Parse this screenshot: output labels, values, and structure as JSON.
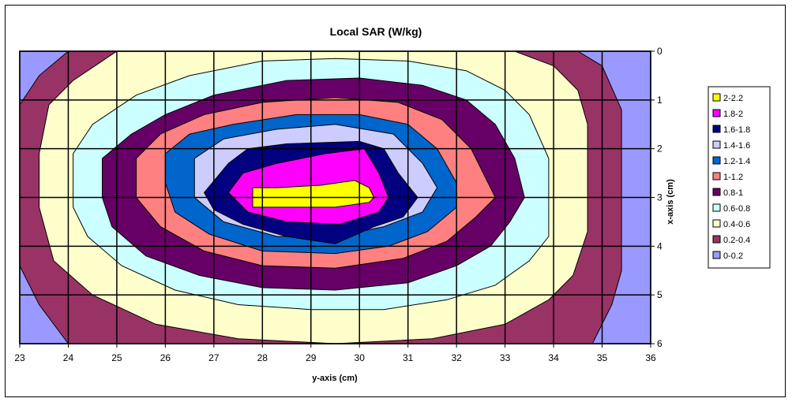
{
  "chart_data": {
    "type": "contour",
    "title": "Local SAR (W/kg)",
    "xlabel": "y-axis (cm)",
    "ylabel": "x-axis (cm)",
    "x_ticks": [
      "23",
      "24",
      "25",
      "26",
      "27",
      "28",
      "29",
      "30",
      "31",
      "32",
      "33",
      "34",
      "35",
      "36"
    ],
    "y_ticks": [
      "0",
      "1",
      "2",
      "3",
      "4",
      "5",
      "6"
    ],
    "xlim": [
      23,
      36
    ],
    "ylim": [
      0,
      6
    ],
    "grid": true,
    "legend_position": "right",
    "legend": [
      {
        "label": "2-2.2",
        "color": "#ffff00"
      },
      {
        "label": "1.8-2",
        "color": "#ff00ff"
      },
      {
        "label": "1.6-1.8",
        "color": "#000080"
      },
      {
        "label": "1.4-1.6",
        "color": "#ccccff"
      },
      {
        "label": "1.2-1.4",
        "color": "#0066cc"
      },
      {
        "label": "1-1.2",
        "color": "#ff8080"
      },
      {
        "label": "0.8-1",
        "color": "#660066"
      },
      {
        "label": "0.6-0.8",
        "color": "#ccffff"
      },
      {
        "label": "0.4-0.6",
        "color": "#ffffcc"
      },
      {
        "label": "0.2-0.4",
        "color": "#993366"
      },
      {
        "label": "0-0.2",
        "color": "#9999ff"
      }
    ],
    "contours": [
      {
        "band": "0.2-0.4",
        "points": [
          [
            23,
            1.1
          ],
          [
            23.4,
            0.5
          ],
          [
            24,
            0
          ],
          [
            34.5,
            0
          ],
          [
            35,
            0.3
          ],
          [
            35.4,
            1.2
          ],
          [
            35.4,
            4.5
          ],
          [
            35.2,
            5.2
          ],
          [
            34.8,
            6
          ],
          [
            24,
            6
          ],
          [
            23.4,
            5.2
          ],
          [
            23,
            4.4
          ]
        ]
      },
      {
        "band": "0.4-0.6",
        "points": [
          [
            23.4,
            2.1
          ],
          [
            23.6,
            1.1
          ],
          [
            24.1,
            0.6
          ],
          [
            25,
            0
          ],
          [
            33.2,
            0
          ],
          [
            34,
            0.3
          ],
          [
            34.5,
            0.8
          ],
          [
            34.7,
            1.5
          ],
          [
            34.7,
            3.7
          ],
          [
            34.4,
            4.6
          ],
          [
            33.9,
            5.1
          ],
          [
            33,
            5.6
          ],
          [
            31.5,
            5.9
          ],
          [
            29.5,
            6
          ],
          [
            27.5,
            5.9
          ],
          [
            25.8,
            5.6
          ],
          [
            24.5,
            5
          ],
          [
            23.7,
            4.3
          ],
          [
            23.4,
            3.2
          ]
        ]
      },
      {
        "band": "0.6-0.8",
        "points": [
          [
            24.1,
            2.1
          ],
          [
            24.5,
            1.5
          ],
          [
            25.4,
            0.9
          ],
          [
            26.5,
            0.5
          ],
          [
            28,
            0.2
          ],
          [
            29.5,
            0.15
          ],
          [
            31,
            0.2
          ],
          [
            32.2,
            0.4
          ],
          [
            33,
            0.8
          ],
          [
            33.5,
            1.3
          ],
          [
            33.9,
            2.2
          ],
          [
            33.9,
            3.8
          ],
          [
            33.5,
            4.3
          ],
          [
            32.8,
            4.8
          ],
          [
            31.8,
            5.1
          ],
          [
            30.5,
            5.3
          ],
          [
            29,
            5.3
          ],
          [
            27.5,
            5.2
          ],
          [
            26.2,
            4.9
          ],
          [
            25.1,
            4.4
          ],
          [
            24.4,
            3.8
          ],
          [
            24.1,
            3.2
          ]
        ]
      },
      {
        "band": "0.8-1",
        "points": [
          [
            24.7,
            2.2
          ],
          [
            25.3,
            1.7
          ],
          [
            26,
            1.3
          ],
          [
            27,
            0.9
          ],
          [
            28.5,
            0.6
          ],
          [
            30,
            0.55
          ],
          [
            31.3,
            0.7
          ],
          [
            32.2,
            1
          ],
          [
            32.8,
            1.5
          ],
          [
            33.2,
            2.2
          ],
          [
            33.4,
            3
          ],
          [
            33.1,
            3.5
          ],
          [
            32.7,
            4
          ],
          [
            32,
            4.4
          ],
          [
            31,
            4.75
          ],
          [
            29.5,
            4.9
          ],
          [
            28,
            4.85
          ],
          [
            26.7,
            4.6
          ],
          [
            25.6,
            4.2
          ],
          [
            24.9,
            3.6
          ],
          [
            24.7,
            3
          ]
        ]
      },
      {
        "band": "1-1.2",
        "points": [
          [
            25.4,
            2.2
          ],
          [
            25.9,
            1.7
          ],
          [
            26.8,
            1.3
          ],
          [
            28,
            1.05
          ],
          [
            29.5,
            0.95
          ],
          [
            30.8,
            1.05
          ],
          [
            31.7,
            1.4
          ],
          [
            32.3,
            2
          ],
          [
            32.8,
            3
          ],
          [
            32.4,
            3.4
          ],
          [
            31.8,
            3.9
          ],
          [
            30.9,
            4.25
          ],
          [
            29.5,
            4.45
          ],
          [
            28,
            4.4
          ],
          [
            26.8,
            4.1
          ],
          [
            25.9,
            3.6
          ],
          [
            25.4,
            3
          ]
        ]
      },
      {
        "band": "1.2-1.4",
        "points": [
          [
            26,
            2.1
          ],
          [
            26.5,
            1.7
          ],
          [
            27.4,
            1.5
          ],
          [
            28.7,
            1.3
          ],
          [
            30,
            1.3
          ],
          [
            31,
            1.5
          ],
          [
            31.6,
            2
          ],
          [
            32,
            2.7
          ],
          [
            32,
            3.2
          ],
          [
            31.4,
            3.7
          ],
          [
            30.6,
            4
          ],
          [
            29.5,
            4.15
          ],
          [
            28,
            4.1
          ],
          [
            26.9,
            3.75
          ],
          [
            26.2,
            3.3
          ],
          [
            26,
            2.7
          ]
        ]
      },
      {
        "band": "1.4-1.6",
        "points": [
          [
            26.6,
            2.2
          ],
          [
            27.2,
            1.8
          ],
          [
            28.3,
            1.6
          ],
          [
            29.5,
            1.5
          ],
          [
            30.7,
            1.7
          ],
          [
            31.3,
            2.3
          ],
          [
            31.6,
            2.8
          ],
          [
            31.3,
            3.3
          ],
          [
            30.5,
            3.6
          ],
          [
            29.5,
            3.8
          ],
          [
            28.3,
            3.8
          ],
          [
            27.2,
            3.5
          ],
          [
            26.6,
            3
          ]
        ]
      },
      {
        "band": "1.6-1.8",
        "points": [
          [
            26.8,
            2.9
          ],
          [
            27.3,
            2.3
          ],
          [
            27.7,
            2
          ],
          [
            28.5,
            1.9
          ],
          [
            30,
            1.85
          ],
          [
            30.5,
            2
          ],
          [
            30.8,
            2.5
          ],
          [
            31.2,
            3
          ],
          [
            30.9,
            3.4
          ],
          [
            30.3,
            3.6
          ],
          [
            29.5,
            3.95
          ],
          [
            28.5,
            3.8
          ],
          [
            27.6,
            3.55
          ],
          [
            27,
            3.25
          ]
        ]
      },
      {
        "band": "1.8-2",
        "points": [
          [
            27.3,
            2.9
          ],
          [
            27.6,
            2.5
          ],
          [
            28.3,
            2.3
          ],
          [
            29.3,
            2.1
          ],
          [
            30.1,
            2
          ],
          [
            30.4,
            2.5
          ],
          [
            30.6,
            3
          ],
          [
            30.4,
            3.3
          ],
          [
            29.6,
            3.55
          ],
          [
            28.5,
            3.5
          ],
          [
            27.7,
            3.3
          ]
        ]
      },
      {
        "band": "2-2.2",
        "points": [
          [
            27.8,
            2.8
          ],
          [
            28.3,
            2.8
          ],
          [
            29.2,
            2.75
          ],
          [
            29.9,
            2.65
          ],
          [
            30.2,
            2.8
          ],
          [
            30.3,
            3
          ],
          [
            30.2,
            3.1
          ],
          [
            29.5,
            3.2
          ],
          [
            28.5,
            3.2
          ],
          [
            27.8,
            3.2
          ]
        ]
      }
    ]
  }
}
